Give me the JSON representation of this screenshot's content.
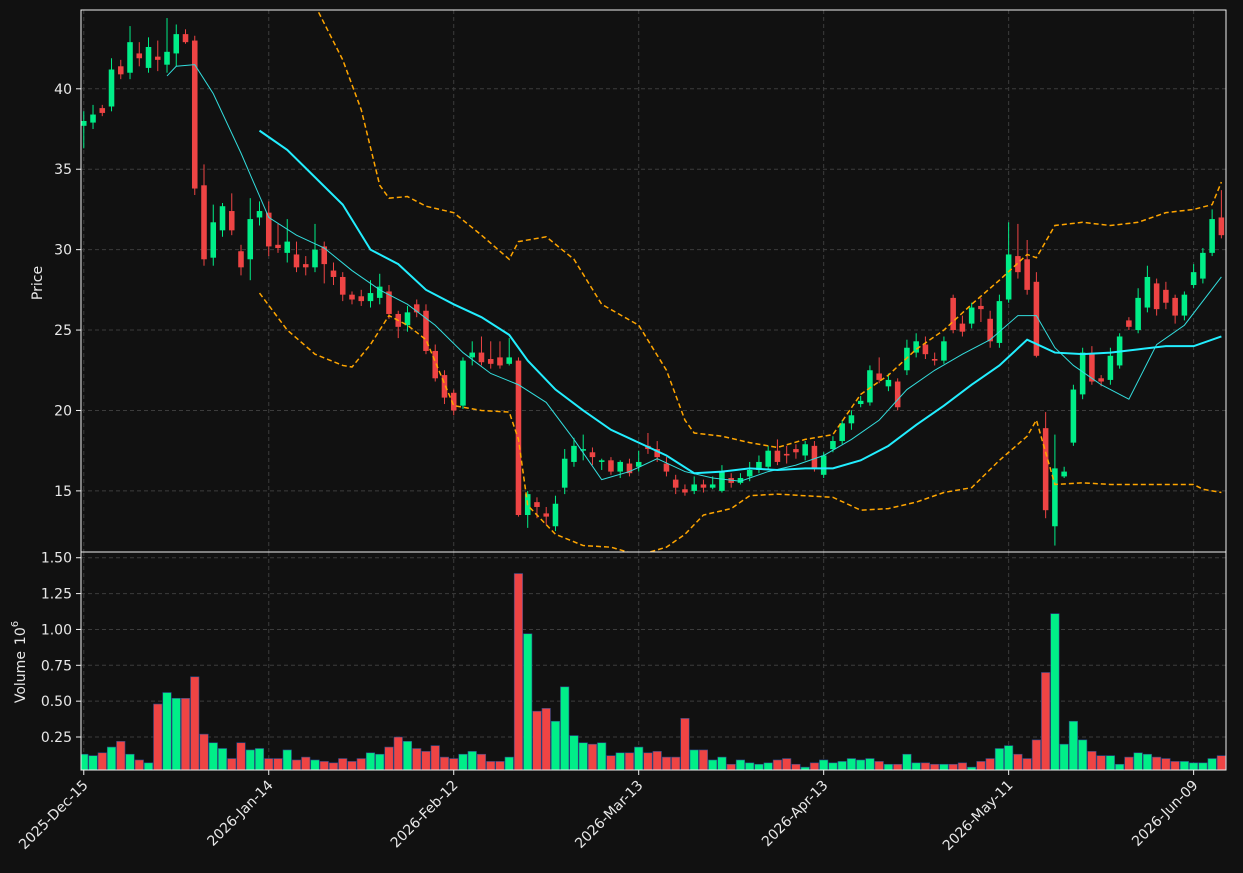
{
  "chart_data": [
    {
      "type": "candlestick",
      "ylabel": "Price",
      "xlim": [
        -0.3,
        123.5
      ],
      "ylim": [
        11.2,
        44.9
      ],
      "yticks": [
        15,
        20,
        25,
        30,
        35,
        40
      ],
      "grid": true,
      "up_color": "#00ee88",
      "down_color": "#ee4444",
      "open": [
        37.7,
        37.9,
        38.8,
        38.9,
        41.4,
        41.0,
        42.2,
        41.3,
        42.0,
        41.5,
        42.2,
        43.4,
        43.0,
        34.0,
        29.5,
        31.2,
        32.4,
        29.9,
        29.4,
        32.0,
        32.3,
        30.3,
        29.8,
        29.7,
        29.1,
        28.9,
        30.2,
        28.7,
        28.3,
        27.2,
        27.1,
        26.8,
        27.0,
        27.4,
        26.0,
        25.3,
        26.6,
        26.2,
        23.7,
        22.2,
        21.1,
        20.3,
        23.3,
        23.6,
        23.2,
        23.3,
        22.9,
        23.1,
        13.5,
        14.3,
        13.6,
        12.8,
        15.2,
        16.8,
        17.5,
        17.4,
        16.8,
        16.9,
        16.2,
        16.7,
        16.5,
        17.8,
        17.6,
        16.7,
        15.7,
        15.1,
        15.0,
        15.4,
        15.2,
        15.0,
        15.8,
        15.5,
        15.9,
        16.3,
        16.5,
        17.5,
        17.3,
        17.6,
        17.2,
        17.8,
        16.0,
        17.6,
        18.1,
        19.2,
        20.4,
        20.5,
        22.3,
        21.5,
        21.8,
        22.5,
        23.6,
        24.1,
        23.2,
        23.1,
        27.0,
        25.4,
        25.4,
        26.5,
        25.7,
        24.2,
        26.9,
        29.6,
        29.4,
        28.0,
        18.9,
        12.8,
        15.9,
        18.0,
        21.0,
        23.5,
        22.0,
        21.9,
        22.8,
        25.6,
        25.0,
        26.4,
        27.9,
        27.5,
        27.0,
        25.9,
        27.8,
        28.2,
        29.8,
        32.0
      ],
      "high": [
        38.6,
        39.0,
        39.0,
        41.9,
        41.8,
        43.9,
        42.9,
        43.2,
        43.0,
        44.4,
        44.0,
        43.7,
        43.3,
        35.3,
        32.8,
        32.9,
        33.5,
        30.3,
        33.2,
        33.0,
        33.0,
        31.6,
        31.9,
        30.5,
        29.6,
        31.6,
        30.5,
        29.2,
        28.6,
        27.4,
        27.5,
        28.1,
        28.5,
        27.8,
        26.2,
        26.5,
        26.9,
        26.6,
        24.1,
        22.5,
        21.3,
        23.3,
        24.3,
        24.6,
        24.3,
        24.3,
        24.5,
        23.3,
        15.0,
        14.6,
        14.0,
        14.7,
        17.6,
        18.3,
        18.5,
        17.7,
        17.0,
        17.1,
        16.9,
        17.0,
        17.5,
        18.6,
        18.1,
        17.1,
        16.0,
        15.4,
        15.9,
        15.7,
        15.9,
        16.6,
        16.1,
        16.1,
        16.8,
        17.2,
        17.8,
        18.2,
        17.8,
        17.9,
        18.1,
        18.1,
        17.4,
        18.4,
        19.4,
        20.0,
        20.9,
        22.8,
        23.3,
        22.3,
        22.0,
        24.4,
        24.8,
        24.6,
        23.6,
        24.6,
        27.2,
        25.9,
        26.7,
        27.0,
        26.2,
        27.2,
        31.7,
        31.6,
        30.6,
        28.6,
        19.9,
        18.5,
        16.5,
        21.6,
        23.9,
        24.0,
        22.2,
        23.9,
        24.8,
        25.8,
        27.6,
        29.0,
        28.2,
        28.0,
        27.2,
        27.4,
        29.1,
        30.1,
        32.5,
        33.7
      ],
      "low": [
        36.3,
        37.5,
        38.3,
        38.6,
        40.6,
        40.6,
        41.4,
        41.0,
        41.1,
        41.0,
        41.4,
        42.8,
        33.4,
        29.0,
        29.0,
        30.8,
        30.9,
        28.4,
        28.1,
        31.5,
        29.6,
        29.8,
        29.2,
        28.6,
        28.4,
        28.6,
        27.9,
        27.8,
        26.8,
        26.6,
        26.5,
        26.4,
        26.6,
        25.7,
        24.5,
        24.9,
        25.8,
        23.5,
        21.8,
        20.4,
        19.7,
        20.1,
        22.8,
        22.8,
        22.6,
        22.6,
        22.8,
        13.4,
        12.7,
        13.3,
        12.9,
        12.5,
        14.8,
        16.5,
        16.9,
        16.6,
        16.3,
        16.0,
        15.8,
        15.9,
        16.2,
        17.3,
        16.8,
        15.9,
        14.8,
        14.7,
        14.8,
        14.9,
        15.1,
        14.9,
        15.2,
        15.4,
        15.6,
        16.1,
        16.3,
        16.6,
        16.7,
        17.0,
        16.9,
        16.2,
        15.8,
        17.4,
        17.9,
        18.8,
        20.2,
        20.3,
        21.7,
        21.2,
        20.0,
        22.2,
        23.3,
        23.2,
        22.8,
        22.9,
        24.8,
        24.6,
        25.1,
        25.5,
        23.9,
        23.9,
        26.7,
        28.2,
        27.2,
        23.3,
        13.3,
        11.6,
        15.8,
        17.8,
        20.7,
        21.6,
        21.5,
        21.6,
        22.6,
        25.0,
        24.8,
        26.1,
        25.9,
        26.3,
        25.4,
        25.6,
        27.6,
        27.9,
        29.6,
        30.7
      ],
      "close": [
        38.0,
        38.4,
        38.5,
        41.2,
        40.9,
        42.9,
        41.9,
        42.6,
        41.8,
        42.3,
        43.4,
        42.9,
        33.8,
        29.4,
        31.7,
        32.7,
        31.2,
        28.9,
        31.9,
        32.4,
        30.2,
        30.1,
        30.5,
        28.9,
        28.9,
        30.0,
        29.1,
        28.3,
        27.2,
        26.9,
        26.8,
        27.3,
        27.7,
        26.0,
        25.2,
        26.1,
        26.1,
        23.7,
        22.0,
        20.8,
        20.0,
        23.1,
        23.6,
        23.0,
        22.9,
        22.8,
        23.3,
        13.5,
        14.8,
        14.0,
        13.4,
        14.2,
        17.0,
        17.8,
        17.6,
        17.1,
        16.9,
        16.2,
        16.8,
        16.1,
        16.8,
        17.6,
        17.1,
        16.2,
        15.2,
        14.9,
        15.4,
        15.2,
        15.4,
        16.2,
        15.5,
        15.8,
        16.3,
        16.8,
        17.5,
        16.8,
        17.2,
        17.4,
        17.9,
        16.4,
        17.2,
        18.1,
        19.2,
        19.7,
        20.6,
        22.5,
        21.9,
        21.9,
        20.2,
        23.9,
        24.3,
        23.5,
        23.1,
        24.3,
        25.0,
        24.9,
        26.4,
        26.3,
        24.3,
        26.8,
        29.7,
        28.6,
        27.5,
        23.4,
        13.8,
        16.4,
        16.2,
        21.3,
        23.6,
        21.8,
        21.8,
        23.4,
        24.6,
        25.2,
        27.0,
        28.3,
        26.3,
        26.7,
        25.9,
        27.2,
        28.6,
        29.8,
        31.9,
        30.9
      ],
      "overlays": [
        {
          "color": "#33dddd",
          "width": 1,
          "x": [
            9,
            10,
            12,
            14,
            17,
            20,
            23,
            26,
            29,
            32,
            35,
            38,
            41,
            44,
            47,
            50,
            53,
            56,
            59,
            62,
            65,
            68,
            71,
            74,
            77,
            80,
            83,
            86,
            89,
            92,
            95,
            98,
            101,
            103,
            105,
            107,
            110,
            113,
            116,
            119,
            123
          ],
          "values": [
            40.8,
            41.4,
            41.5,
            39.7,
            36.0,
            32.0,
            30.9,
            30.1,
            28.7,
            27.5,
            26.6,
            25.3,
            23.6,
            22.3,
            21.6,
            20.5,
            18.2,
            15.7,
            16.2,
            17.0,
            16.2,
            15.8,
            15.6,
            16.2,
            16.6,
            17.2,
            18.2,
            19.4,
            21.3,
            22.5,
            23.5,
            24.4,
            25.9,
            25.9,
            23.9,
            22.8,
            21.6,
            20.7,
            24.1,
            25.3,
            28.3
          ]
        },
        {
          "color": "#22eeff",
          "width": 2,
          "x": [
            19,
            22,
            25,
            28,
            31,
            34,
            37,
            40,
            43,
            46,
            48,
            51,
            54,
            57,
            60,
            63,
            66,
            69,
            72,
            75,
            78,
            81,
            84,
            87,
            90,
            93,
            96,
            99,
            102,
            105,
            108,
            111,
            114,
            117,
            120,
            123
          ],
          "values": [
            37.4,
            36.2,
            34.5,
            32.8,
            30.0,
            29.1,
            27.5,
            26.6,
            25.8,
            24.7,
            23.1,
            21.3,
            20.0,
            18.8,
            18.0,
            17.2,
            16.1,
            16.2,
            16.4,
            16.3,
            16.4,
            16.4,
            16.9,
            17.8,
            19.1,
            20.3,
            21.6,
            22.8,
            24.4,
            23.6,
            23.5,
            23.6,
            23.8,
            24.0,
            24.0,
            24.6
          ]
        },
        {
          "color": "#ffa500",
          "width": 1.5,
          "dash": true,
          "x": [
            25,
            28,
            30,
            32,
            33,
            35,
            37,
            40,
            43,
            46,
            47,
            50,
            53,
            56,
            60,
            63,
            65,
            66,
            69,
            72,
            75,
            78,
            81,
            84,
            87,
            90,
            93,
            96,
            99,
            102,
            103,
            105,
            108,
            111,
            114,
            117,
            120,
            122,
            123
          ],
          "values": [
            45.2,
            41.8,
            38.7,
            34.0,
            33.2,
            33.3,
            32.7,
            32.3,
            30.9,
            29.4,
            30.5,
            30.8,
            29.4,
            26.6,
            25.3,
            22.5,
            19.4,
            18.6,
            18.4,
            18.0,
            17.7,
            18.2,
            18.5,
            21.0,
            22.2,
            23.8,
            25.0,
            26.6,
            28.1,
            29.7,
            29.5,
            31.5,
            31.7,
            31.5,
            31.7,
            32.3,
            32.5,
            32.8,
            34.2
          ]
        },
        {
          "color": "#ffa500",
          "width": 1.5,
          "dash": true,
          "x": [
            19,
            22,
            25,
            28,
            29,
            31,
            33,
            35,
            37,
            40,
            43,
            46,
            47,
            48,
            51,
            54,
            57,
            60,
            63,
            65,
            67,
            70,
            72,
            75,
            78,
            81,
            84,
            87,
            90,
            93,
            96,
            99,
            102,
            103,
            105,
            108,
            111,
            114,
            117,
            120,
            121,
            123
          ],
          "values": [
            27.3,
            25.0,
            23.5,
            22.8,
            22.7,
            24.1,
            25.9,
            25.3,
            24.4,
            20.3,
            20.0,
            19.9,
            18.2,
            14.1,
            12.3,
            11.6,
            11.5,
            11.0,
            11.5,
            12.3,
            13.5,
            13.9,
            14.7,
            14.8,
            14.7,
            14.6,
            13.8,
            13.9,
            14.3,
            14.9,
            15.2,
            16.9,
            18.4,
            19.4,
            15.4,
            15.5,
            15.4,
            15.4,
            15.4,
            15.4,
            15.1,
            14.9
          ]
        }
      ]
    },
    {
      "type": "bar",
      "ylabel": "Volume",
      "scale_base": "10",
      "scale_exponent": "6",
      "xlim": [
        -0.3,
        123.5
      ],
      "ylim": [
        0.02,
        1.54
      ],
      "yticks": [
        0.25,
        {
          "value": 0.5,
          "label": "0.50"
        },
        0.75,
        {
          "value": 1,
          "label": "1.00"
        },
        1.25,
        {
          "value": 1.5,
          "label": "1.50"
        }
      ],
      "grid": true,
      "categories": [
        "2025-Dec-15",
        null,
        null,
        null,
        null,
        null,
        null,
        null,
        null,
        null,
        null,
        null,
        null,
        null,
        null,
        null,
        null,
        null,
        null,
        null,
        "2026-Jan-14",
        null,
        null,
        null,
        null,
        null,
        null,
        null,
        null,
        null,
        null,
        null,
        null,
        null,
        null,
        null,
        null,
        null,
        null,
        null,
        "2026-Feb-12",
        null,
        null,
        null,
        null,
        null,
        null,
        null,
        null,
        null,
        null,
        null,
        null,
        null,
        null,
        null,
        null,
        null,
        null,
        null,
        "2026-Mar-13",
        null,
        null,
        null,
        null,
        null,
        null,
        null,
        null,
        null,
        null,
        null,
        null,
        null,
        null,
        null,
        null,
        null,
        null,
        null,
        "2026-Apr-13",
        null,
        null,
        null,
        null,
        null,
        null,
        null,
        null,
        null,
        null,
        null,
        null,
        null,
        null,
        null,
        null,
        null,
        null,
        null,
        "2026-May-11",
        null,
        null,
        null,
        null,
        null,
        null,
        null,
        null,
        null,
        null,
        null,
        null,
        null,
        null,
        null,
        null,
        null,
        null,
        null,
        "2026-Jun-09",
        null,
        null,
        null
      ],
      "values": [
        0.13,
        0.12,
        0.14,
        0.18,
        0.22,
        0.13,
        0.09,
        0.07,
        0.48,
        0.56,
        0.52,
        0.52,
        0.67,
        0.27,
        0.21,
        0.17,
        0.1,
        0.21,
        0.16,
        0.17,
        0.1,
        0.1,
        0.16,
        0.09,
        0.11,
        0.09,
        0.08,
        0.07,
        0.1,
        0.08,
        0.1,
        0.14,
        0.13,
        0.18,
        0.25,
        0.22,
        0.17,
        0.15,
        0.19,
        0.11,
        0.1,
        0.13,
        0.15,
        0.13,
        0.08,
        0.08,
        0.11,
        1.39,
        0.97,
        0.43,
        0.45,
        0.36,
        0.6,
        0.26,
        0.21,
        0.2,
        0.21,
        0.12,
        0.14,
        0.14,
        0.18,
        0.14,
        0.15,
        0.11,
        0.11,
        0.38,
        0.16,
        0.16,
        0.09,
        0.11,
        0.06,
        0.09,
        0.07,
        0.06,
        0.07,
        0.09,
        0.1,
        0.06,
        0.04,
        0.07,
        0.09,
        0.07,
        0.08,
        0.1,
        0.09,
        0.1,
        0.08,
        0.06,
        0.06,
        0.13,
        0.07,
        0.07,
        0.06,
        0.06,
        0.06,
        0.07,
        0.04,
        0.08,
        0.1,
        0.17,
        0.19,
        0.13,
        0.1,
        0.23,
        0.7,
        1.11,
        0.2,
        0.36,
        0.23,
        0.15,
        0.12,
        0.12,
        0.06,
        0.11,
        0.14,
        0.13,
        0.11,
        0.1,
        0.08,
        0.08,
        0.07,
        0.07,
        0.1,
        0.12
      ]
    }
  ]
}
